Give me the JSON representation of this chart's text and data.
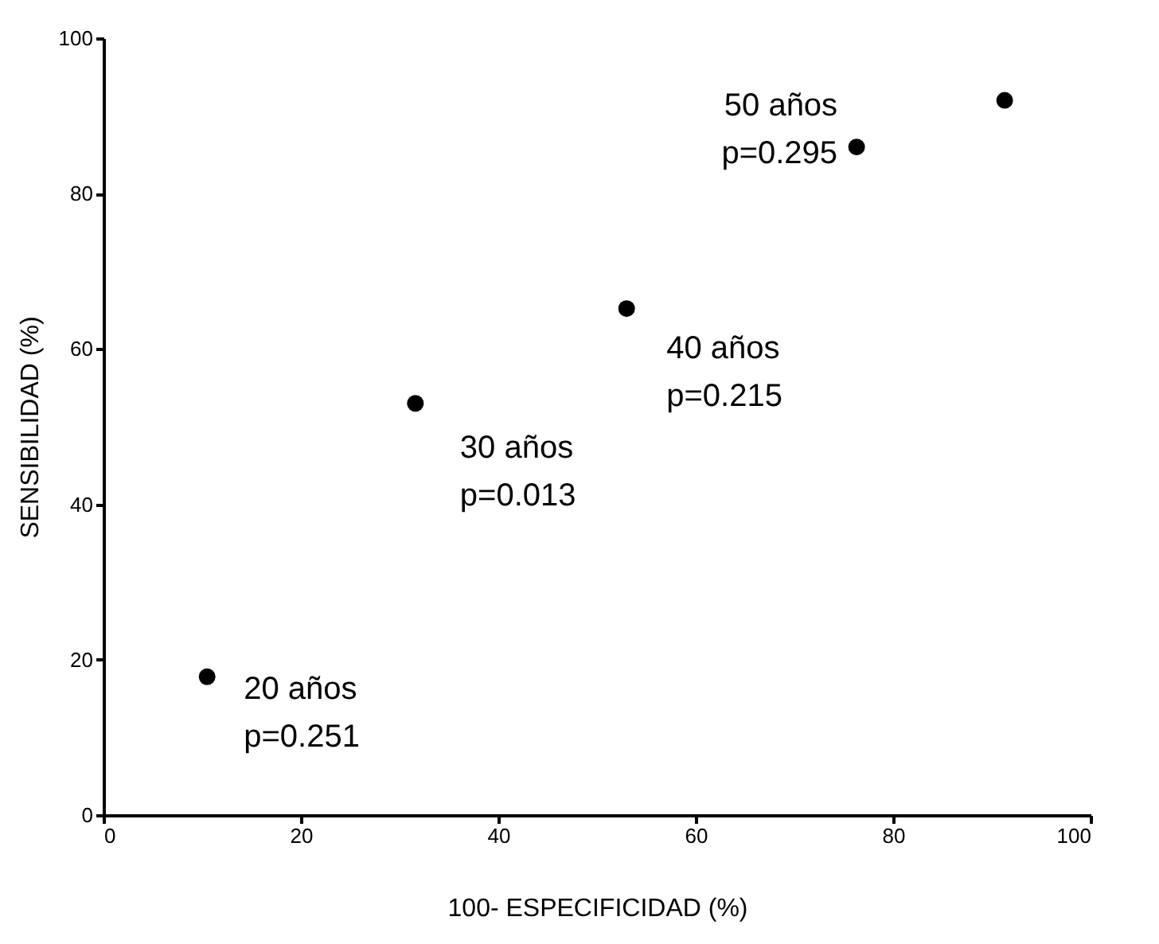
{
  "chart_data": {
    "type": "scatter",
    "xlabel": "100- ESPECIFICIDAD (%)",
    "ylabel": "SENSIBILIDAD (%)",
    "x": [
      10.5,
      31.6,
      53,
      76.3,
      91.3
    ],
    "values": [
      17.8,
      53,
      65.2,
      86,
      92
    ],
    "color": "#000000",
    "marker": "circle",
    "grid": false,
    "xlim": [
      0,
      100
    ],
    "xticks": [
      0,
      20,
      40,
      60,
      80,
      100
    ],
    "ylim": [
      0,
      100
    ],
    "yticks": [
      0,
      20,
      40,
      60,
      80,
      100
    ],
    "annotations": [
      {
        "text": "20 años\np=0.251",
        "x": 10.5,
        "y": 17.8
      },
      {
        "text": "30 años\np=0.013",
        "x": 31.6,
        "y": 53
      },
      {
        "text": "40 años\np=0.215",
        "x": 53,
        "y": 65.2
      },
      {
        "text": "50 años\np=0.295",
        "x": 76.3,
        "y": 86
      }
    ]
  }
}
